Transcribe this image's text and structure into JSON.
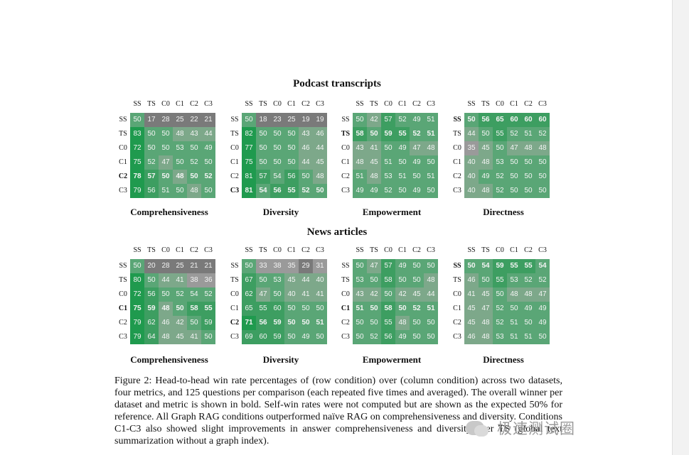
{
  "section_titles": [
    "Podcast transcripts",
    "News articles"
  ],
  "colors": {
    "green_strong": "#1f9a4e",
    "green_mid": "#3d9e61",
    "green_soft": "#5aa676",
    "gray": "#9a9a9a",
    "gray_green": "#7da88a",
    "gray_dark": "#7a7a7a"
  },
  "header_labels": [
    "SS",
    "TS",
    "C0",
    "C1",
    "C2",
    "C3"
  ],
  "panels": [
    {
      "dataset": "Podcast transcripts",
      "metric": "Comprehensiveness",
      "bold_row": "C2",
      "rows": [
        {
          "label": "SS",
          "values": [
            50,
            17,
            28,
            25,
            22,
            21
          ]
        },
        {
          "label": "TS",
          "values": [
            83,
            50,
            50,
            48,
            43,
            44
          ]
        },
        {
          "label": "C0",
          "values": [
            72,
            50,
            50,
            53,
            50,
            49
          ]
        },
        {
          "label": "C1",
          "values": [
            75,
            52,
            47,
            50,
            52,
            50
          ]
        },
        {
          "label": "C2",
          "values": [
            78,
            57,
            50,
            48,
            50,
            52
          ]
        },
        {
          "label": "C3",
          "values": [
            79,
            56,
            51,
            50,
            48,
            50
          ]
        }
      ]
    },
    {
      "dataset": "Podcast transcripts",
      "metric": "Diversity",
      "bold_row": "C3",
      "rows": [
        {
          "label": "SS",
          "values": [
            50,
            18,
            23,
            25,
            19,
            19
          ]
        },
        {
          "label": "TS",
          "values": [
            82,
            50,
            50,
            50,
            43,
            46
          ]
        },
        {
          "label": "C0",
          "values": [
            77,
            50,
            50,
            50,
            46,
            44
          ]
        },
        {
          "label": "C1",
          "values": [
            75,
            50,
            50,
            50,
            44,
            45
          ]
        },
        {
          "label": "C2",
          "values": [
            81,
            57,
            54,
            56,
            50,
            48
          ]
        },
        {
          "label": "C3",
          "values": [
            81,
            54,
            56,
            55,
            52,
            50
          ]
        }
      ]
    },
    {
      "dataset": "Podcast transcripts",
      "metric": "Empowerment",
      "bold_row": "TS",
      "rows": [
        {
          "label": "SS",
          "values": [
            50,
            42,
            57,
            52,
            49,
            51
          ]
        },
        {
          "label": "TS",
          "values": [
            58,
            50,
            59,
            55,
            52,
            51
          ]
        },
        {
          "label": "C0",
          "values": [
            43,
            41,
            50,
            49,
            47,
            48
          ]
        },
        {
          "label": "C1",
          "values": [
            48,
            45,
            51,
            50,
            49,
            50
          ]
        },
        {
          "label": "C2",
          "values": [
            51,
            48,
            53,
            51,
            50,
            51
          ]
        },
        {
          "label": "C3",
          "values": [
            49,
            49,
            52,
            50,
            49,
            50
          ]
        }
      ]
    },
    {
      "dataset": "Podcast transcripts",
      "metric": "Directness",
      "bold_row": "SS",
      "rows": [
        {
          "label": "SS",
          "values": [
            50,
            56,
            65,
            60,
            60,
            60
          ]
        },
        {
          "label": "TS",
          "values": [
            44,
            50,
            55,
            52,
            51,
            52
          ]
        },
        {
          "label": "C0",
          "values": [
            35,
            45,
            50,
            47,
            48,
            48
          ]
        },
        {
          "label": "C1",
          "values": [
            40,
            48,
            53,
            50,
            50,
            50
          ]
        },
        {
          "label": "C2",
          "values": [
            40,
            49,
            52,
            50,
            50,
            50
          ]
        },
        {
          "label": "C3",
          "values": [
            40,
            48,
            52,
            50,
            50,
            50
          ]
        }
      ]
    },
    {
      "dataset": "News articles",
      "metric": "Comprehensiveness",
      "bold_row": "C1",
      "rows": [
        {
          "label": "SS",
          "values": [
            50,
            20,
            28,
            25,
            21,
            21
          ]
        },
        {
          "label": "TS",
          "values": [
            80,
            50,
            44,
            41,
            38,
            36
          ]
        },
        {
          "label": "C0",
          "values": [
            72,
            56,
            50,
            52,
            54,
            52
          ]
        },
        {
          "label": "C1",
          "values": [
            75,
            59,
            48,
            50,
            58,
            55
          ]
        },
        {
          "label": "C2",
          "values": [
            79,
            62,
            46,
            42,
            50,
            59
          ]
        },
        {
          "label": "C3",
          "values": [
            79,
            64,
            48,
            45,
            41,
            50
          ]
        }
      ]
    },
    {
      "dataset": "News articles",
      "metric": "Diversity",
      "bold_row": "C2",
      "rows": [
        {
          "label": "SS",
          "values": [
            50,
            33,
            38,
            35,
            29,
            31
          ]
        },
        {
          "label": "TS",
          "values": [
            67,
            50,
            53,
            45,
            44,
            40
          ]
        },
        {
          "label": "C0",
          "values": [
            62,
            47,
            50,
            40,
            41,
            41
          ]
        },
        {
          "label": "C1",
          "values": [
            65,
            55,
            60,
            50,
            50,
            50
          ]
        },
        {
          "label": "C2",
          "values": [
            71,
            56,
            59,
            50,
            50,
            51
          ]
        },
        {
          "label": "C3",
          "values": [
            69,
            60,
            59,
            50,
            49,
            50
          ]
        }
      ]
    },
    {
      "dataset": "News articles",
      "metric": "Empowerment",
      "bold_row": "C1",
      "rows": [
        {
          "label": "SS",
          "values": [
            50,
            47,
            57,
            49,
            50,
            50
          ]
        },
        {
          "label": "TS",
          "values": [
            53,
            50,
            58,
            50,
            50,
            48
          ]
        },
        {
          "label": "C0",
          "values": [
            43,
            42,
            50,
            42,
            45,
            44
          ]
        },
        {
          "label": "C1",
          "values": [
            51,
            50,
            58,
            50,
            52,
            51
          ]
        },
        {
          "label": "C2",
          "values": [
            50,
            50,
            55,
            48,
            50,
            50
          ]
        },
        {
          "label": "C3",
          "values": [
            50,
            52,
            56,
            49,
            50,
            50
          ]
        }
      ]
    },
    {
      "dataset": "News articles",
      "metric": "Directness",
      "bold_row": "SS",
      "rows": [
        {
          "label": "SS",
          "values": [
            50,
            54,
            59,
            55,
            55,
            54
          ]
        },
        {
          "label": "TS",
          "values": [
            46,
            50,
            55,
            53,
            52,
            52
          ]
        },
        {
          "label": "C0",
          "values": [
            41,
            45,
            50,
            48,
            48,
            47
          ]
        },
        {
          "label": "C1",
          "values": [
            45,
            47,
            52,
            50,
            49,
            49
          ]
        },
        {
          "label": "C2",
          "values": [
            45,
            48,
            52,
            51,
            50,
            49
          ]
        },
        {
          "label": "C3",
          "values": [
            46,
            48,
            53,
            51,
            51,
            50
          ]
        }
      ]
    }
  ],
  "caption": "Figure 2: Head-to-head win rate percentages of (row condition) over (column condition) across two datasets, four metrics, and 125 questions per comparison (each repeated five times and averaged). The overall winner per dataset and metric is shown in bold. Self-win rates were not computed but are shown as the expected 50% for reference. All Graph RAG conditions outperformed naïve RAG on comprehensiveness and diversity. Conditions C1-C3 also showed slight improvements in answer comprehensiveness and diversity over TS (global text summarization without a graph index).",
  "watermark": {
    "text": "极速测试圈",
    "icon": "wechat-logo-icon"
  }
}
